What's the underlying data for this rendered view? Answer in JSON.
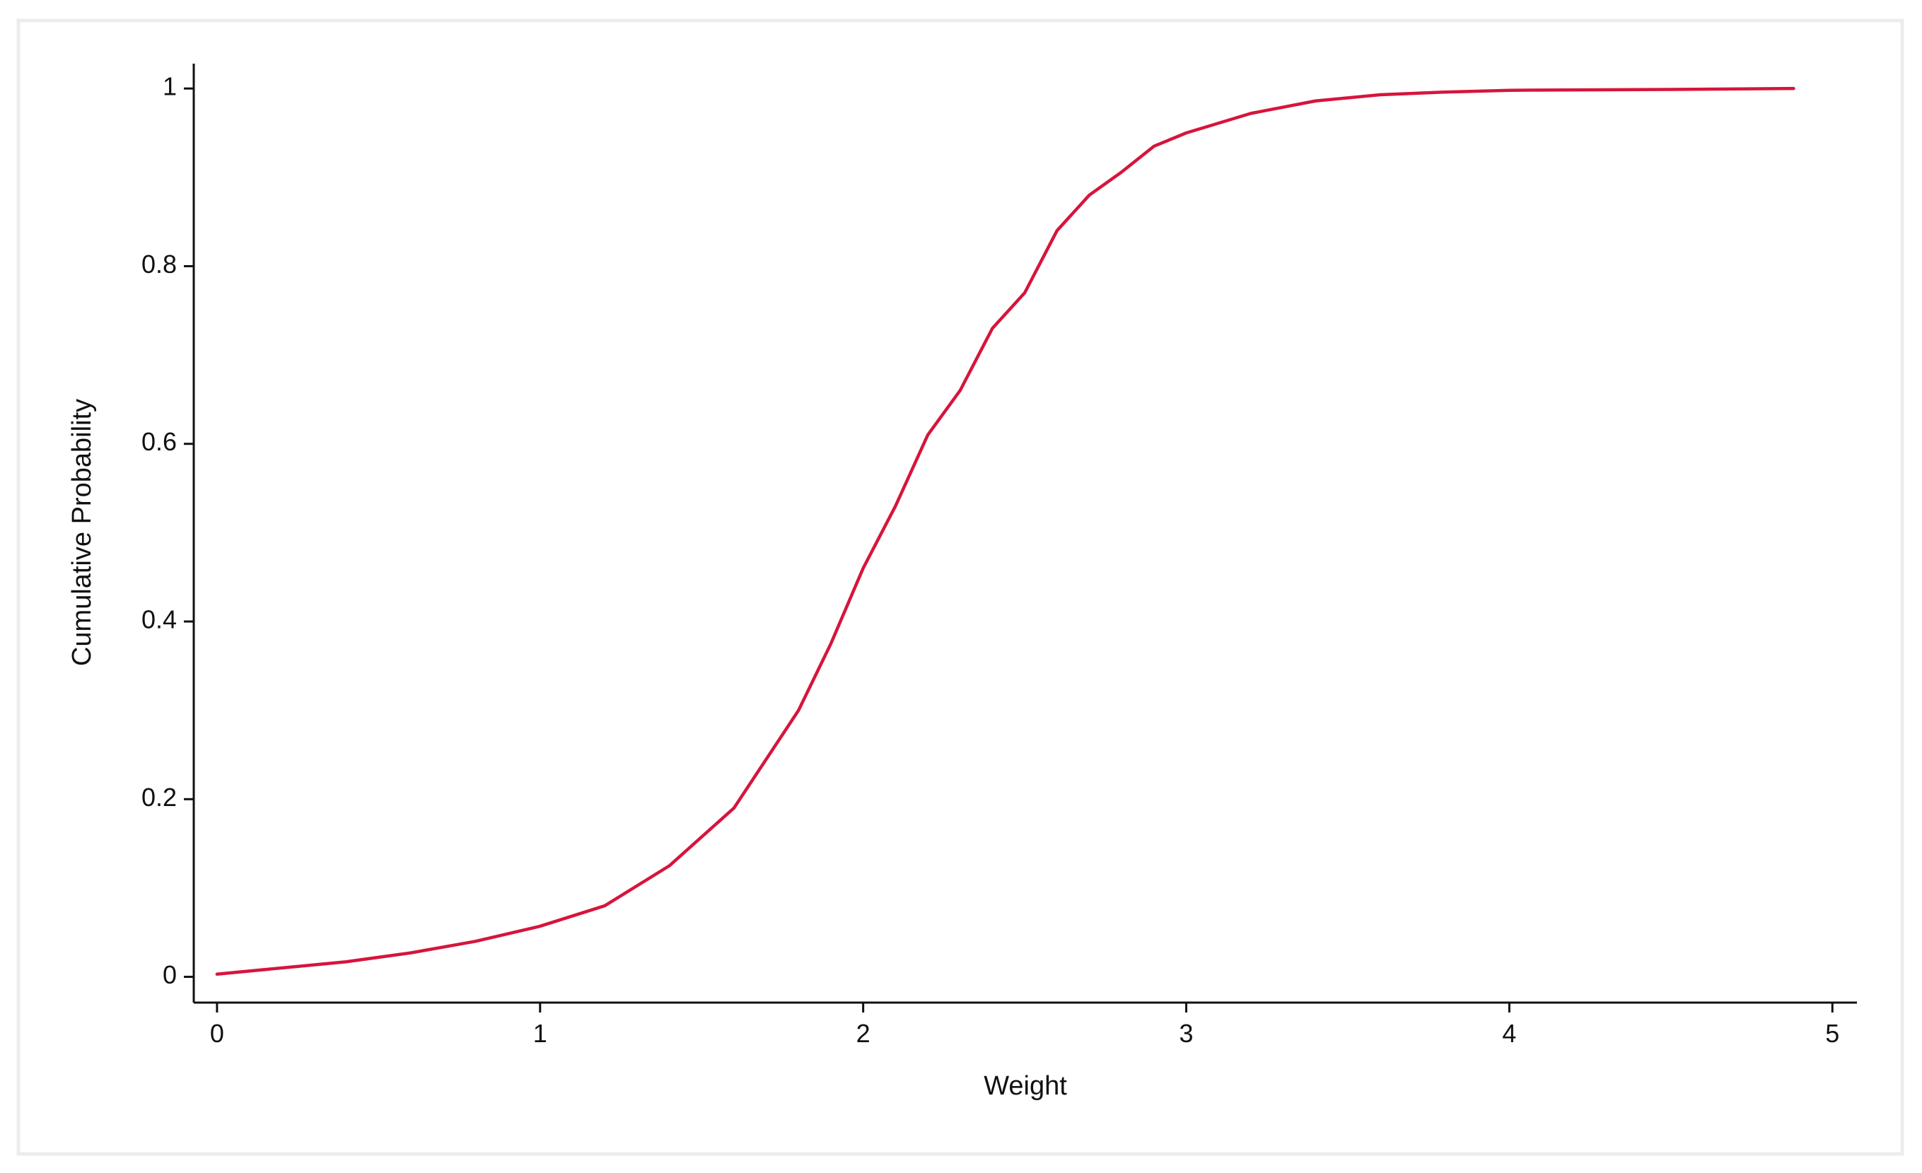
{
  "chart_data": {
    "type": "line",
    "x_label": "Weight",
    "y_label": "Cumulative Probability",
    "x": [
      0,
      0.2,
      0.4,
      0.6,
      0.8,
      1.0,
      1.2,
      1.4,
      1.6,
      1.8,
      1.9,
      2.0,
      2.1,
      2.2,
      2.3,
      2.4,
      2.5,
      2.6,
      2.7,
      2.8,
      2.9,
      3.0,
      3.2,
      3.4,
      3.6,
      3.8,
      4.0,
      4.5,
      4.88
    ],
    "series": [
      {
        "color": "#d6153c",
        "values": [
          0.003,
          0.01,
          0.017,
          0.027,
          0.04,
          0.057,
          0.08,
          0.125,
          0.19,
          0.3,
          0.375,
          0.46,
          0.53,
          0.61,
          0.66,
          0.73,
          0.77,
          0.84,
          0.88,
          0.906,
          0.935,
          0.95,
          0.972,
          0.986,
          0.993,
          0.996,
          0.998,
          0.999,
          1.0
        ]
      }
    ],
    "xlim": [
      -0.072,
      5.076
    ],
    "ylim": [
      -0.029,
      1.028
    ],
    "xticks": [
      0,
      1,
      2,
      3,
      4,
      5
    ],
    "yticks": [
      0,
      0.2,
      0.4,
      0.6,
      0.8,
      1
    ],
    "grid": false
  }
}
